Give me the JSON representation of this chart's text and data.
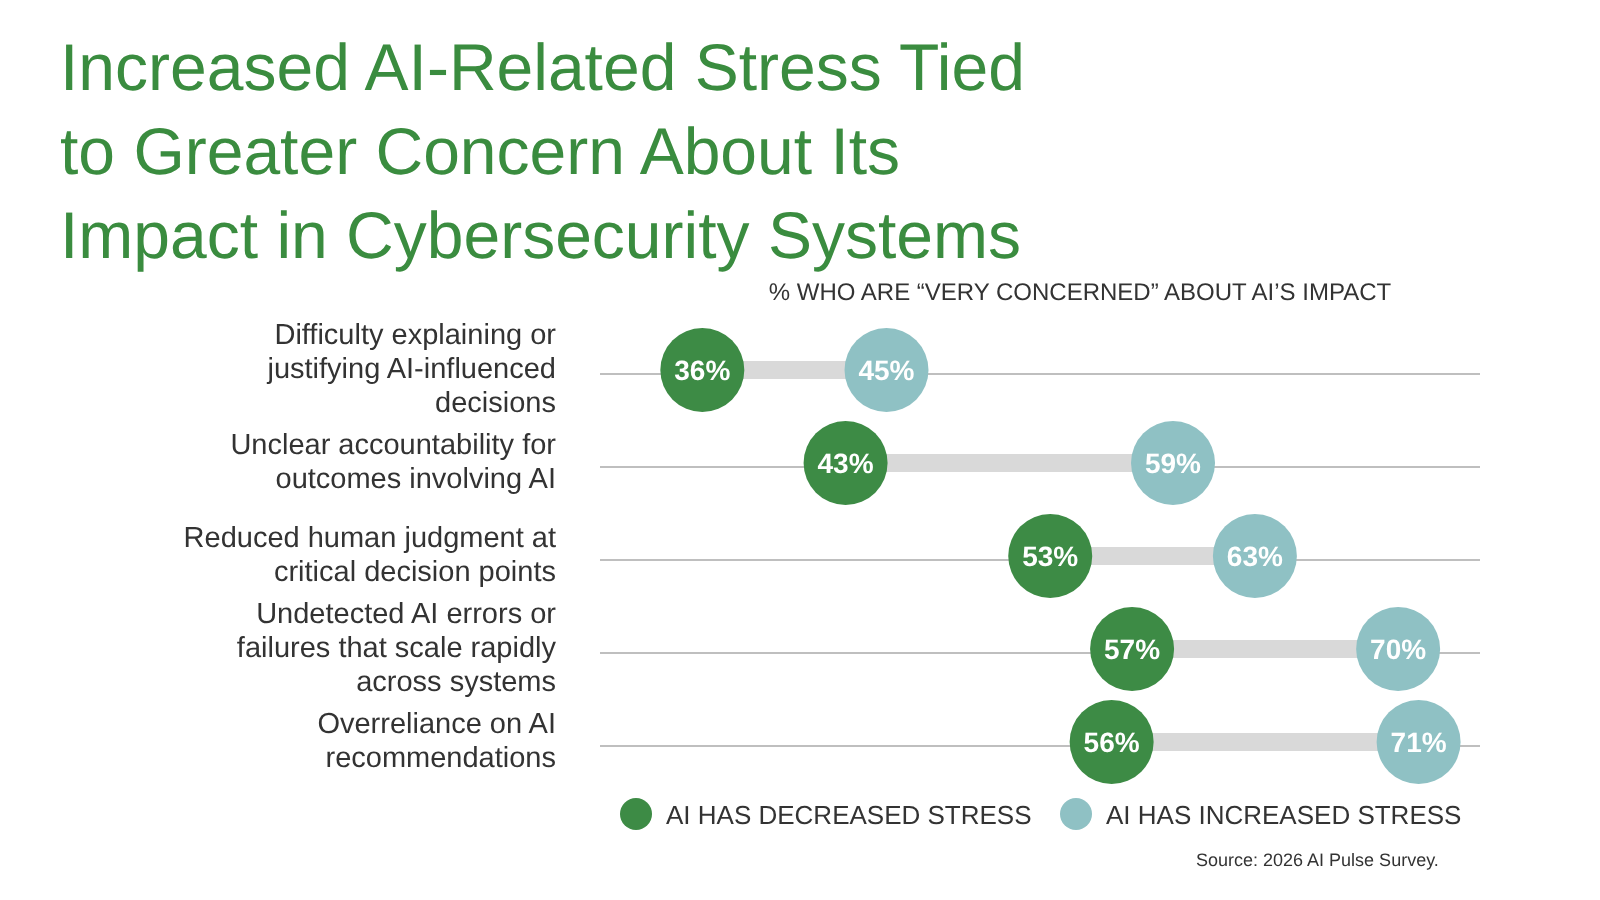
{
  "chart_data": {
    "type": "scatter",
    "orientation": "horizontal",
    "title": "Increased AI-Related Stress Tied to Greater Concern About Its Impact in Cybersecurity Systems",
    "xlabel": "% WHO ARE “VERY CONCERNED” ABOUT AI’S IMPACT",
    "categories": [
      "Difficulty explaining or justifying AI-influenced decisions",
      "Unclear accountability for outcomes involving AI",
      "Reduced human judgment at critical decision points",
      "Undetected AI errors or failures that scale rapidly across systems",
      "Overreliance on AI recommendations"
    ],
    "xlim": [
      31,
      74
    ],
    "grid": "y",
    "legend": "bottom",
    "marker": "circle",
    "series": [
      {
        "name": "AI HAS DECREASED STRESS",
        "color": "#3d8b45",
        "values": [
          36,
          43,
          53,
          57,
          56
        ],
        "value_labels": [
          "36%",
          "43%",
          "53%",
          "57%",
          "56%"
        ]
      },
      {
        "name": "AI HAS INCREASED STRESS",
        "color": "#8fc1c4",
        "values": [
          45,
          59,
          63,
          70,
          71
        ],
        "value_labels": [
          "45%",
          "59%",
          "63%",
          "70%",
          "71%"
        ]
      }
    ],
    "annotations": [
      "Source: 2026 AI Pulse Survey."
    ]
  }
}
